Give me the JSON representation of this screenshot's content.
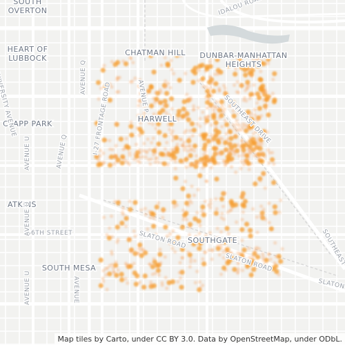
{
  "map": {
    "labels": [
      "SOUTH\nOVERTON",
      "HEART OF\nLUBBOCK",
      "CHATMAN HILL",
      "DUNBAR-MANHATTAN\nHEIGHTS",
      "HARWELL",
      "CLAPP PARK",
      "ATKINS",
      "66TH STREET",
      "SOUTHGATE",
      "SOUTH MESA",
      "SLATON ROAD",
      "SLATON ROAD",
      "SLATON",
      "SOUTHEAST DRIVE",
      "SOUTHEAST",
      "IDALOU ROAD",
      "I-27 FRONTAGE ROAD",
      "AVENUE P",
      "AVENUE Q",
      "AVENUE Q",
      "AVENUE U",
      "AVENUE U",
      "AVENUE U",
      "UNIVERSITY AVENUE",
      "AVENUE"
    ],
    "attribution": "Map tiles by Carto, under CC BY 3.0. Data by OpenStreetMap, under ODbL."
  }
}
